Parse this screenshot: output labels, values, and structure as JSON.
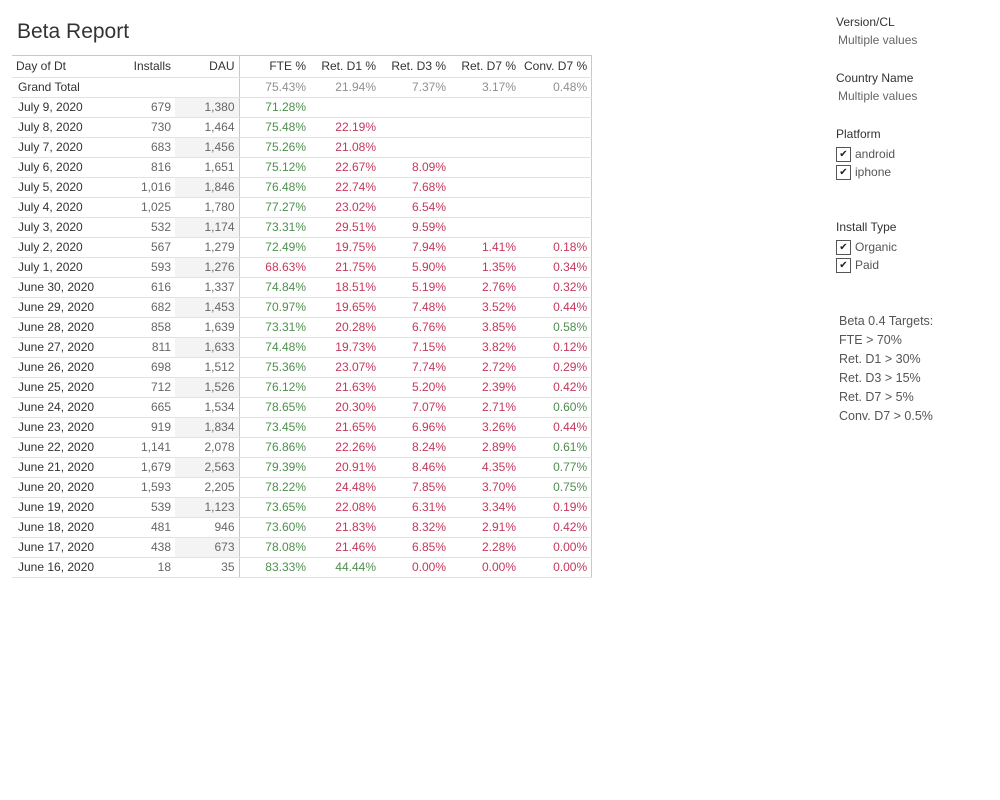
{
  "title": "Beta Report",
  "table": {
    "columns": [
      "Day of Dt",
      "Installs",
      "DAU",
      "FTE %",
      "Ret. D1 %",
      "Ret. D3 %",
      "Ret. D7 %",
      "Conv. D7 %"
    ],
    "grand_total": {
      "label": "Grand Total",
      "installs": "",
      "dau": "",
      "fte": "75.43%",
      "d1": "21.94%",
      "d3": "7.37%",
      "d7": "3.17%",
      "conv": "0.48%"
    },
    "rows": [
      {
        "day": "July 9, 2020",
        "installs": "679",
        "dau": "1,380",
        "fte": "71.28%",
        "d1": "",
        "d3": "",
        "d7": "",
        "conv": ""
      },
      {
        "day": "July 8, 2020",
        "installs": "730",
        "dau": "1,464",
        "fte": "75.48%",
        "d1": "22.19%",
        "d3": "",
        "d7": "",
        "conv": ""
      },
      {
        "day": "July 7, 2020",
        "installs": "683",
        "dau": "1,456",
        "fte": "75.26%",
        "d1": "21.08%",
        "d3": "",
        "d7": "",
        "conv": ""
      },
      {
        "day": "July 6, 2020",
        "installs": "816",
        "dau": "1,651",
        "fte": "75.12%",
        "d1": "22.67%",
        "d3": "8.09%",
        "d7": "",
        "conv": ""
      },
      {
        "day": "July 5, 2020",
        "installs": "1,016",
        "dau": "1,846",
        "fte": "76.48%",
        "d1": "22.74%",
        "d3": "7.68%",
        "d7": "",
        "conv": ""
      },
      {
        "day": "July 4, 2020",
        "installs": "1,025",
        "dau": "1,780",
        "fte": "77.27%",
        "d1": "23.02%",
        "d3": "6.54%",
        "d7": "",
        "conv": ""
      },
      {
        "day": "July 3, 2020",
        "installs": "532",
        "dau": "1,174",
        "fte": "73.31%",
        "d1": "29.51%",
        "d3": "9.59%",
        "d7": "",
        "conv": ""
      },
      {
        "day": "July 2, 2020",
        "installs": "567",
        "dau": "1,279",
        "fte": "72.49%",
        "d1": "19.75%",
        "d3": "7.94%",
        "d7": "1.41%",
        "conv": "0.18%"
      },
      {
        "day": "July 1, 2020",
        "installs": "593",
        "dau": "1,276",
        "fte": "68.63%",
        "d1": "21.75%",
        "d3": "5.90%",
        "d7": "1.35%",
        "conv": "0.34%"
      },
      {
        "day": "June 30, 2020",
        "installs": "616",
        "dau": "1,337",
        "fte": "74.84%",
        "d1": "18.51%",
        "d3": "5.19%",
        "d7": "2.76%",
        "conv": "0.32%"
      },
      {
        "day": "June 29, 2020",
        "installs": "682",
        "dau": "1,453",
        "fte": "70.97%",
        "d1": "19.65%",
        "d3": "7.48%",
        "d7": "3.52%",
        "conv": "0.44%"
      },
      {
        "day": "June 28, 2020",
        "installs": "858",
        "dau": "1,639",
        "fte": "73.31%",
        "d1": "20.28%",
        "d3": "6.76%",
        "d7": "3.85%",
        "conv": "0.58%"
      },
      {
        "day": "June 27, 2020",
        "installs": "811",
        "dau": "1,633",
        "fte": "74.48%",
        "d1": "19.73%",
        "d3": "7.15%",
        "d7": "3.82%",
        "conv": "0.12%"
      },
      {
        "day": "June 26, 2020",
        "installs": "698",
        "dau": "1,512",
        "fte": "75.36%",
        "d1": "23.07%",
        "d3": "7.74%",
        "d7": "2.72%",
        "conv": "0.29%"
      },
      {
        "day": "June 25, 2020",
        "installs": "712",
        "dau": "1,526",
        "fte": "76.12%",
        "d1": "21.63%",
        "d3": "5.20%",
        "d7": "2.39%",
        "conv": "0.42%"
      },
      {
        "day": "June 24, 2020",
        "installs": "665",
        "dau": "1,534",
        "fte": "78.65%",
        "d1": "20.30%",
        "d3": "7.07%",
        "d7": "2.71%",
        "conv": "0.60%"
      },
      {
        "day": "June 23, 2020",
        "installs": "919",
        "dau": "1,834",
        "fte": "73.45%",
        "d1": "21.65%",
        "d3": "6.96%",
        "d7": "3.26%",
        "conv": "0.44%"
      },
      {
        "day": "June 22, 2020",
        "installs": "1,141",
        "dau": "2,078",
        "fte": "76.86%",
        "d1": "22.26%",
        "d3": "8.24%",
        "d7": "2.89%",
        "conv": "0.61%"
      },
      {
        "day": "June 21, 2020",
        "installs": "1,679",
        "dau": "2,563",
        "fte": "79.39%",
        "d1": "20.91%",
        "d3": "8.46%",
        "d7": "4.35%",
        "conv": "0.77%"
      },
      {
        "day": "June 20, 2020",
        "installs": "1,593",
        "dau": "2,205",
        "fte": "78.22%",
        "d1": "24.48%",
        "d3": "7.85%",
        "d7": "3.70%",
        "conv": "0.75%"
      },
      {
        "day": "June 19, 2020",
        "installs": "539",
        "dau": "1,123",
        "fte": "73.65%",
        "d1": "22.08%",
        "d3": "6.31%",
        "d7": "3.34%",
        "conv": "0.19%"
      },
      {
        "day": "June 18, 2020",
        "installs": "481",
        "dau": "946",
        "fte": "73.60%",
        "d1": "21.83%",
        "d3": "8.32%",
        "d7": "2.91%",
        "conv": "0.42%"
      },
      {
        "day": "June 17, 2020",
        "installs": "438",
        "dau": "673",
        "fte": "78.08%",
        "d1": "21.46%",
        "d3": "6.85%",
        "d7": "2.28%",
        "conv": "0.00%"
      },
      {
        "day": "June 16, 2020",
        "installs": "18",
        "dau": "35",
        "fte": "83.33%",
        "d1": "44.44%",
        "d3": "0.00%",
        "d7": "0.00%",
        "conv": "0.00%"
      }
    ],
    "colors": {
      "good": "#4f8e4f",
      "bad": "#c4385d",
      "total": "#8f8f8f"
    }
  },
  "filters": {
    "version": {
      "title": "Version/CL",
      "value": "Multiple values"
    },
    "country": {
      "title": "Country Name",
      "value": "Multiple values"
    },
    "platform": {
      "title": "Platform",
      "options": [
        {
          "label": "android",
          "checked": true
        },
        {
          "label": "iphone",
          "checked": true
        }
      ]
    },
    "install_type": {
      "title": "Install Type",
      "options": [
        {
          "label": "Organic",
          "checked": true
        },
        {
          "label": "Paid",
          "checked": true
        }
      ]
    },
    "check_glyph": "✔"
  },
  "targets": {
    "lines": [
      "Beta 0.4 Targets:",
      "FTE > 70%",
      "Ret. D1 > 30%",
      "Ret. D3 > 15%",
      "Ret. D7 > 5%",
      "Conv. D7 > 0.5%"
    ]
  }
}
